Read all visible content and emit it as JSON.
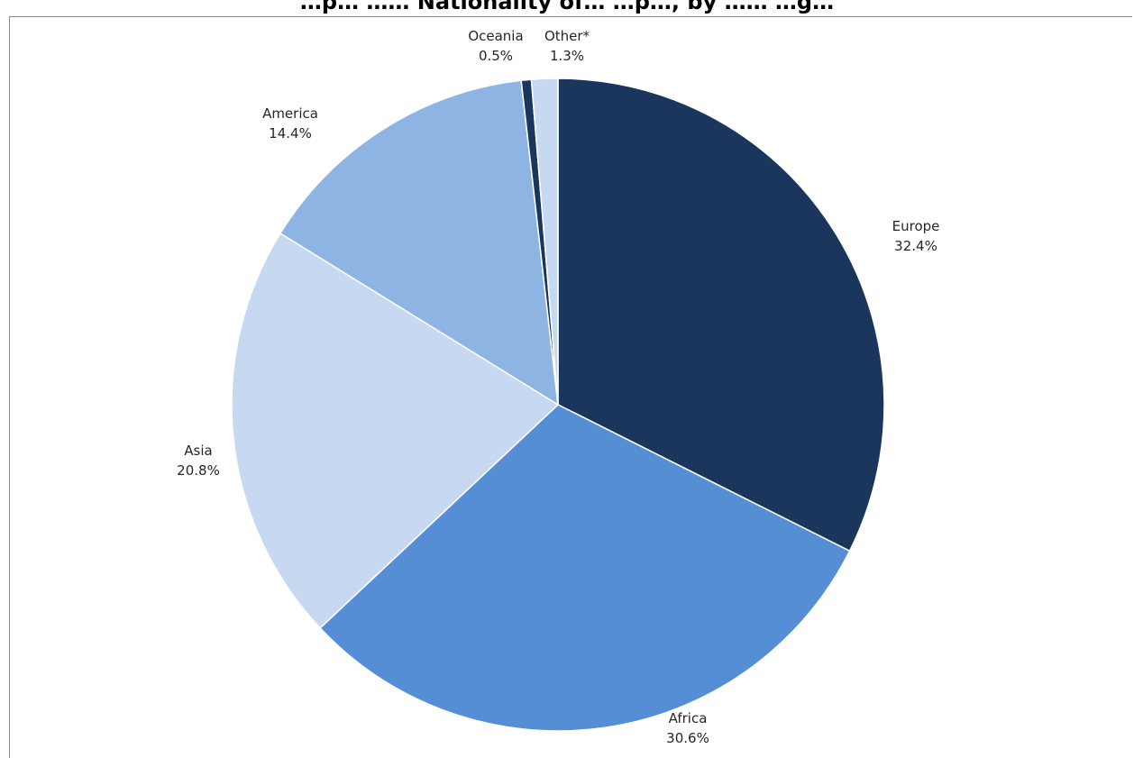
{
  "chart_data": {
    "type": "pie",
    "title": "…p… …… Nationality of… …p…, by …… …g…",
    "categories": [
      "Europe",
      "Africa",
      "Asia",
      "America",
      "Oceania",
      "Other*"
    ],
    "values": [
      32.4,
      30.6,
      20.8,
      14.4,
      0.5,
      1.3
    ],
    "value_labels": [
      "32.4%",
      "30.6%",
      "20.8%",
      "14.4%",
      "0.5%",
      "1.3%"
    ],
    "colors": [
      "#1a365d",
      "#558ed5",
      "#c6d9f1",
      "#8eb4e3",
      "#1a365d",
      "#c6d9f1"
    ],
    "start": "12 o'clock",
    "direction": "clockwise",
    "legend": "none (labels on slices)"
  }
}
